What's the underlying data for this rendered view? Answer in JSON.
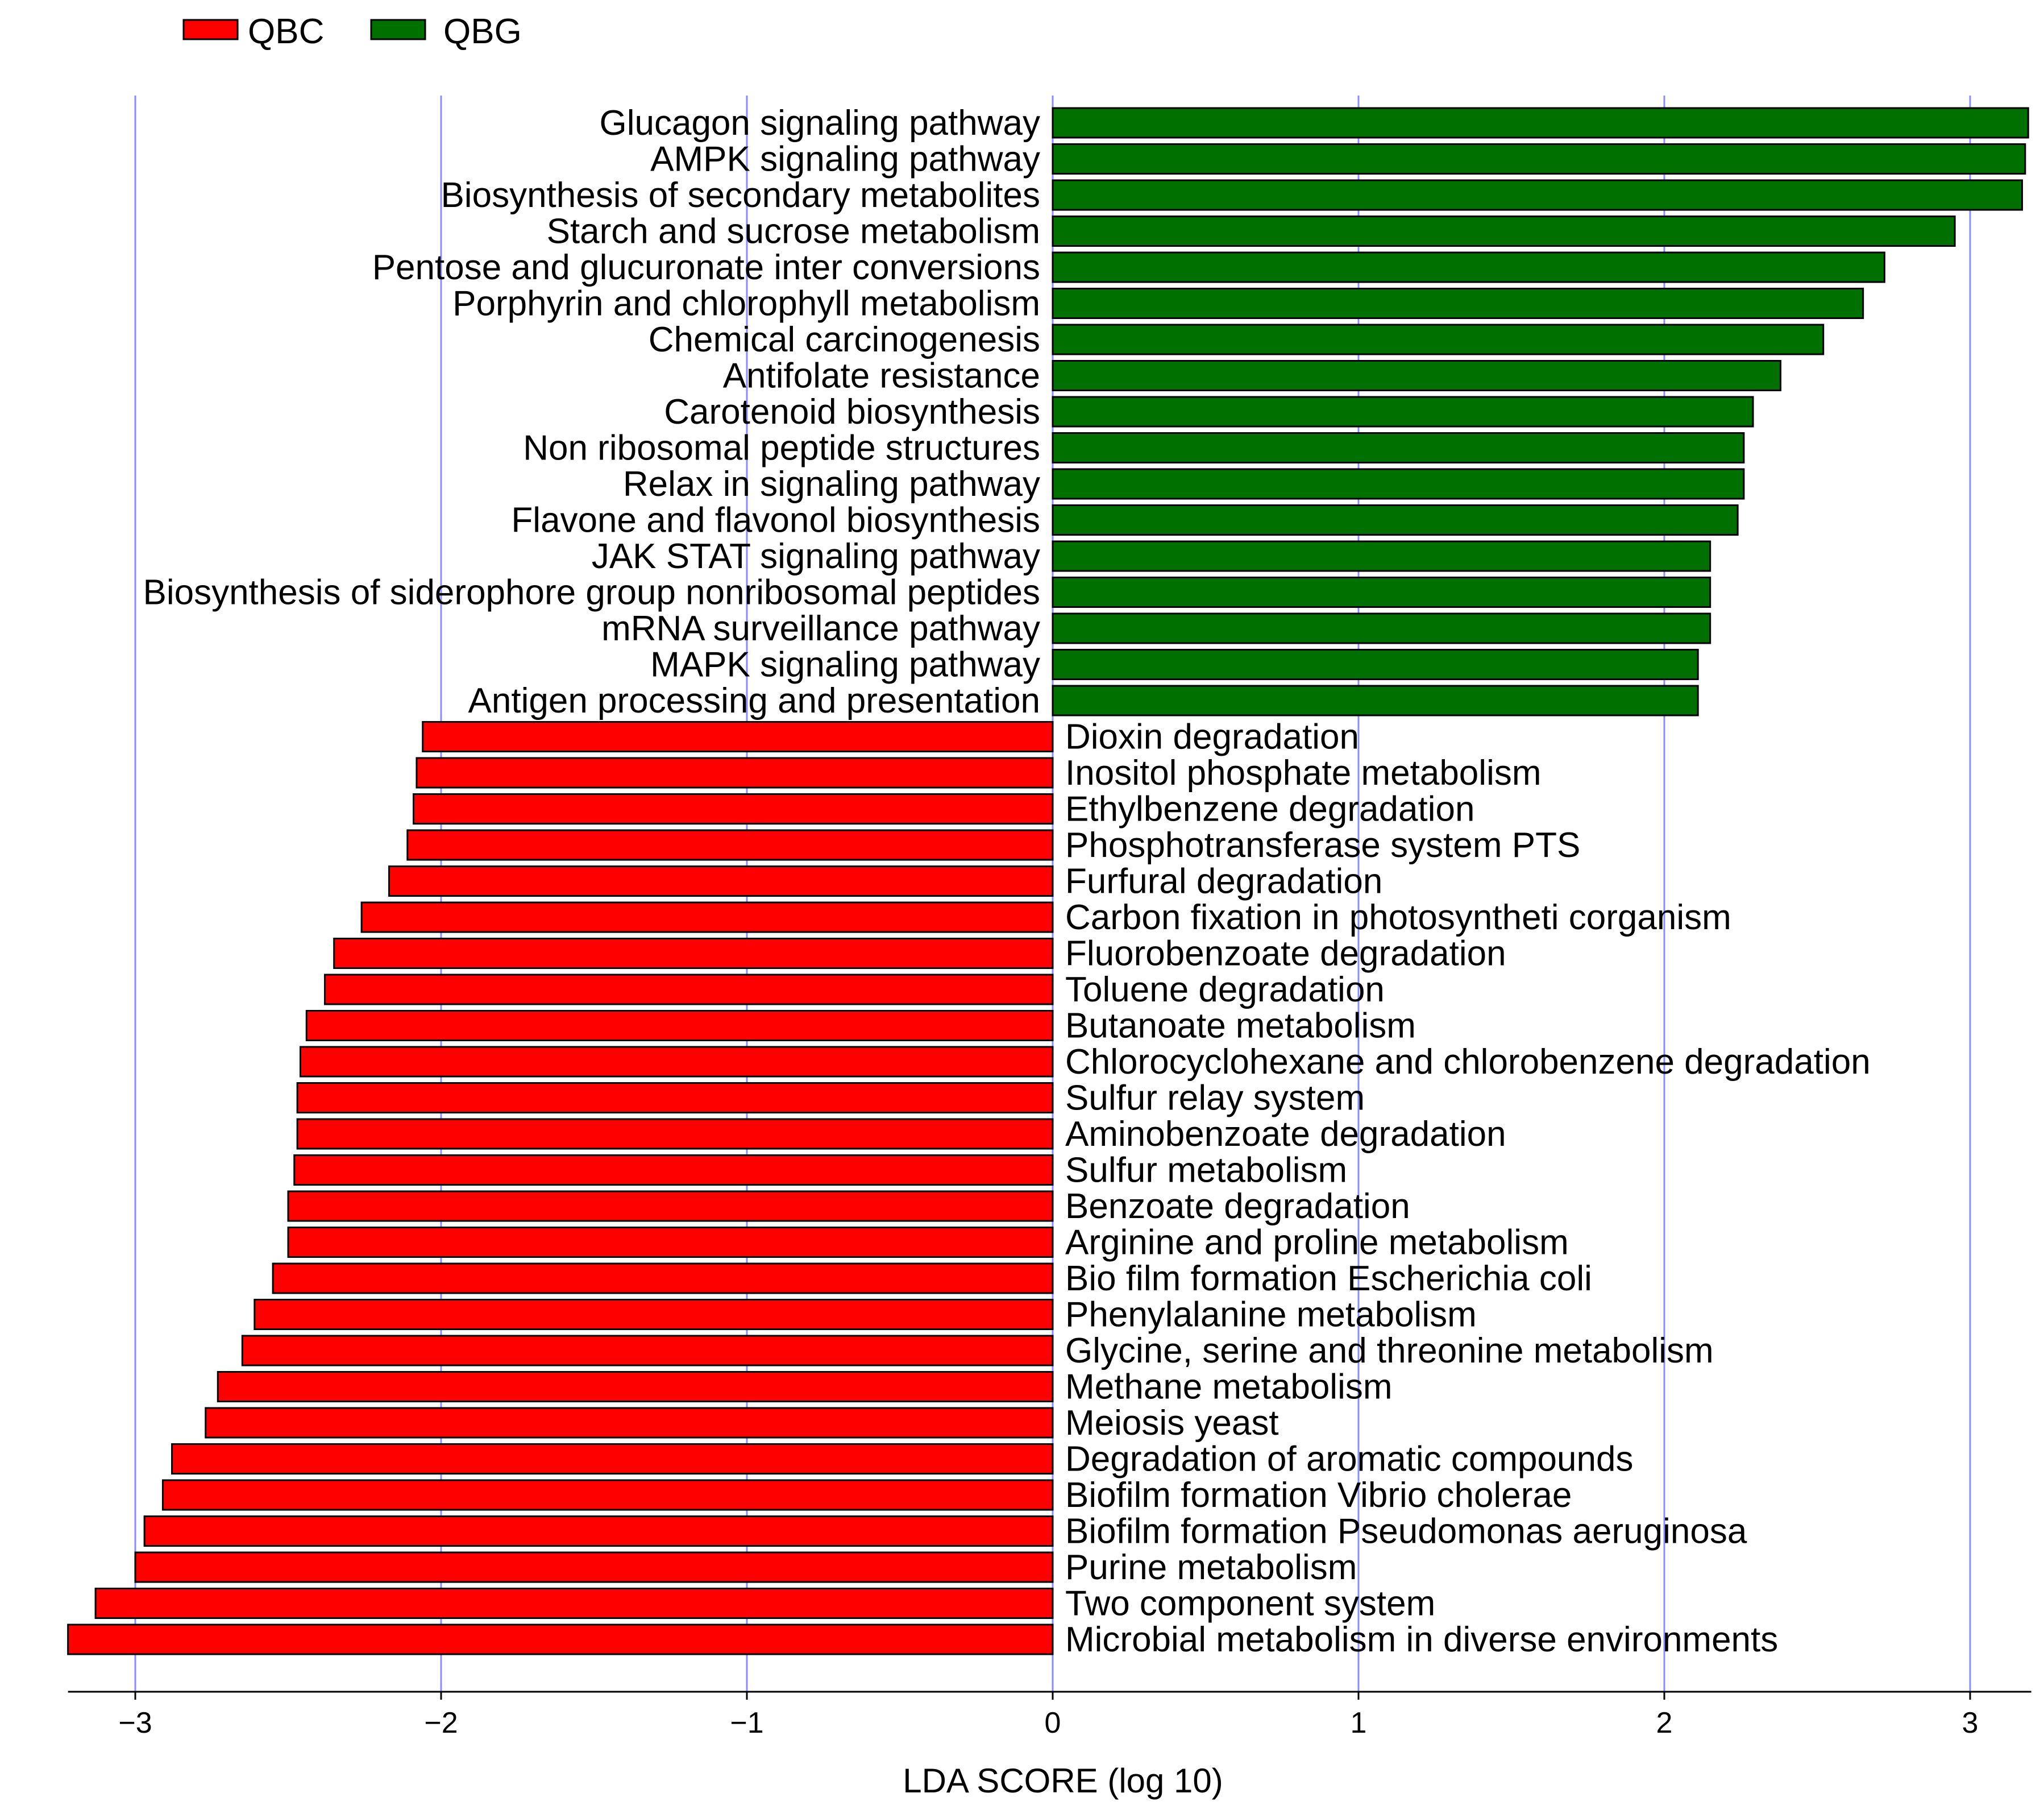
{
  "chart_data": {
    "type": "bar",
    "orientation": "horizontal",
    "xlabel": "LDA SCORE (log 10)",
    "xlim": [
      -3.22,
      3.2
    ],
    "xticks": [
      -3,
      -2,
      -1,
      0,
      1,
      2,
      3
    ],
    "xtick_labels": [
      "−3",
      "−2",
      "−1",
      "0",
      "1",
      "2",
      "3"
    ],
    "grid": "vertical",
    "legend": {
      "placement": "top-left",
      "entries": [
        {
          "name": "QBC",
          "color": "#ff0000"
        },
        {
          "name": "QBG",
          "color": "#007000"
        }
      ]
    },
    "series": [
      {
        "name": "QBG",
        "color": "#007000",
        "categories": [
          "Glucagon signaling pathway",
          "AMPK signaling pathway",
          "Biosynthesis of secondary metabolites",
          "Starch and sucrose metabolism",
          "Pentose and glucuronate inter conversions",
          "Porphyrin and chlorophyll metabolism",
          "Chemical carcinogenesis",
          "Antifolate resistance",
          "Carotenoid biosynthesis",
          "Non ribosomal peptide structures",
          "Relax in signaling pathway",
          "Flavone and flavonol biosynthesis",
          "JAK STAT signaling pathway",
          "Biosynthesis of siderophore group nonribosomal peptides",
          "mRNA surveillance pathway",
          "MAPK signaling pathway",
          "Antigen processing and presentation"
        ],
        "values": [
          3.19,
          3.18,
          3.17,
          2.95,
          2.72,
          2.65,
          2.52,
          2.38,
          2.29,
          2.26,
          2.26,
          2.24,
          2.15,
          2.15,
          2.15,
          2.11,
          2.11
        ]
      },
      {
        "name": "QBC",
        "color": "#ff0000",
        "categories": [
          "Dioxin degradation",
          "Inositol phosphate metabolism",
          "Ethylbenzene degradation",
          "Phosphotransferase system PTS",
          "Furfural degradation",
          "Carbon fixation in photosyntheti corganism",
          "Fluorobenzoate degradation",
          "Toluene degradation",
          "Butanoate metabolism",
          "Chlorocyclohexane and chlorobenzene degradation",
          "Sulfur relay system",
          "Aminobenzoate degradation",
          "Sulfur metabolism",
          "Benzoate degradation",
          "Arginine and proline metabolism",
          "Bio film formation Escherichia coli",
          "Phenylalanine metabolism",
          "Glycine, serine and threonine metabolism",
          "Methane metabolism",
          "Meiosis yeast",
          "Degradation of aromatic compounds",
          "Biofilm formation Vibrio cholerae",
          "Biofilm formation Pseudomonas aeruginosa",
          "Purine metabolism",
          "Two component system",
          "Microbial metabolism in diverse environments"
        ],
        "values": [
          -2.06,
          -2.08,
          -2.09,
          -2.11,
          -2.17,
          -2.26,
          -2.35,
          -2.38,
          -2.44,
          -2.46,
          -2.47,
          -2.47,
          -2.48,
          -2.5,
          -2.5,
          -2.55,
          -2.61,
          -2.65,
          -2.73,
          -2.77,
          -2.88,
          -2.91,
          -2.97,
          -3.0,
          -3.13,
          -3.22
        ]
      }
    ]
  }
}
